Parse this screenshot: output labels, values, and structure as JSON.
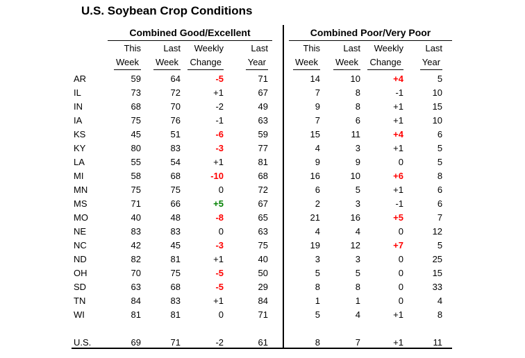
{
  "title": "U.S. Soybean Crop Conditions",
  "sections": [
    {
      "label": "Combined Good/Excellent"
    },
    {
      "label": "Combined Poor/Very Poor"
    }
  ],
  "column_headers": {
    "line1": [
      "This",
      "Last",
      "Weekly",
      "Last"
    ],
    "line2": [
      "Week",
      "Week",
      "Change",
      "Year"
    ]
  },
  "colors": {
    "red_highlight": "#ff0000",
    "green_highlight": "#008000",
    "text": "#000000",
    "background": "#ffffff"
  },
  "rows": [
    {
      "state": "AR",
      "good_excellent": {
        "this_week": "59",
        "last_week": "64",
        "weekly_change": "-5",
        "change_highlight": "red",
        "last_year": "71"
      },
      "poor_very_poor": {
        "this_week": "14",
        "last_week": "10",
        "weekly_change": "+4",
        "change_highlight": "red",
        "last_year": "5"
      }
    },
    {
      "state": "IL",
      "good_excellent": {
        "this_week": "73",
        "last_week": "72",
        "weekly_change": "+1",
        "change_highlight": null,
        "last_year": "67"
      },
      "poor_very_poor": {
        "this_week": "7",
        "last_week": "8",
        "weekly_change": "-1",
        "change_highlight": null,
        "last_year": "10"
      }
    },
    {
      "state": "IN",
      "good_excellent": {
        "this_week": "68",
        "last_week": "70",
        "weekly_change": "-2",
        "change_highlight": null,
        "last_year": "49"
      },
      "poor_very_poor": {
        "this_week": "9",
        "last_week": "8",
        "weekly_change": "+1",
        "change_highlight": null,
        "last_year": "15"
      }
    },
    {
      "state": "IA",
      "good_excellent": {
        "this_week": "75",
        "last_week": "76",
        "weekly_change": "-1",
        "change_highlight": null,
        "last_year": "63"
      },
      "poor_very_poor": {
        "this_week": "7",
        "last_week": "6",
        "weekly_change": "+1",
        "change_highlight": null,
        "last_year": "10"
      }
    },
    {
      "state": "KS",
      "good_excellent": {
        "this_week": "45",
        "last_week": "51",
        "weekly_change": "-6",
        "change_highlight": "red",
        "last_year": "59"
      },
      "poor_very_poor": {
        "this_week": "15",
        "last_week": "11",
        "weekly_change": "+4",
        "change_highlight": "red",
        "last_year": "6"
      }
    },
    {
      "state": "KY",
      "good_excellent": {
        "this_week": "80",
        "last_week": "83",
        "weekly_change": "-3",
        "change_highlight": "red",
        "last_year": "77"
      },
      "poor_very_poor": {
        "this_week": "4",
        "last_week": "3",
        "weekly_change": "+1",
        "change_highlight": null,
        "last_year": "5"
      }
    },
    {
      "state": "LA",
      "good_excellent": {
        "this_week": "55",
        "last_week": "54",
        "weekly_change": "+1",
        "change_highlight": null,
        "last_year": "81"
      },
      "poor_very_poor": {
        "this_week": "9",
        "last_week": "9",
        "weekly_change": "0",
        "change_highlight": null,
        "last_year": "5"
      }
    },
    {
      "state": "MI",
      "good_excellent": {
        "this_week": "58",
        "last_week": "68",
        "weekly_change": "-10",
        "change_highlight": "red",
        "last_year": "68"
      },
      "poor_very_poor": {
        "this_week": "16",
        "last_week": "10",
        "weekly_change": "+6",
        "change_highlight": "red",
        "last_year": "8"
      }
    },
    {
      "state": "MN",
      "good_excellent": {
        "this_week": "75",
        "last_week": "75",
        "weekly_change": "0",
        "change_highlight": null,
        "last_year": "72"
      },
      "poor_very_poor": {
        "this_week": "6",
        "last_week": "5",
        "weekly_change": "+1",
        "change_highlight": null,
        "last_year": "6"
      }
    },
    {
      "state": "MS",
      "good_excellent": {
        "this_week": "71",
        "last_week": "66",
        "weekly_change": "+5",
        "change_highlight": "green",
        "last_year": "67"
      },
      "poor_very_poor": {
        "this_week": "2",
        "last_week": "3",
        "weekly_change": "-1",
        "change_highlight": null,
        "last_year": "6"
      }
    },
    {
      "state": "MO",
      "good_excellent": {
        "this_week": "40",
        "last_week": "48",
        "weekly_change": "-8",
        "change_highlight": "red",
        "last_year": "65"
      },
      "poor_very_poor": {
        "this_week": "21",
        "last_week": "16",
        "weekly_change": "+5",
        "change_highlight": "red",
        "last_year": "7"
      }
    },
    {
      "state": "NE",
      "good_excellent": {
        "this_week": "83",
        "last_week": "83",
        "weekly_change": "0",
        "change_highlight": null,
        "last_year": "63"
      },
      "poor_very_poor": {
        "this_week": "4",
        "last_week": "4",
        "weekly_change": "0",
        "change_highlight": null,
        "last_year": "12"
      }
    },
    {
      "state": "NC",
      "good_excellent": {
        "this_week": "42",
        "last_week": "45",
        "weekly_change": "-3",
        "change_highlight": "red",
        "last_year": "75"
      },
      "poor_very_poor": {
        "this_week": "19",
        "last_week": "12",
        "weekly_change": "+7",
        "change_highlight": "red",
        "last_year": "5"
      }
    },
    {
      "state": "ND",
      "good_excellent": {
        "this_week": "82",
        "last_week": "81",
        "weekly_change": "+1",
        "change_highlight": null,
        "last_year": "40"
      },
      "poor_very_poor": {
        "this_week": "3",
        "last_week": "3",
        "weekly_change": "0",
        "change_highlight": null,
        "last_year": "25"
      }
    },
    {
      "state": "OH",
      "good_excellent": {
        "this_week": "70",
        "last_week": "75",
        "weekly_change": "-5",
        "change_highlight": "red",
        "last_year": "50"
      },
      "poor_very_poor": {
        "this_week": "5",
        "last_week": "5",
        "weekly_change": "0",
        "change_highlight": null,
        "last_year": "15"
      }
    },
    {
      "state": "SD",
      "good_excellent": {
        "this_week": "63",
        "last_week": "68",
        "weekly_change": "-5",
        "change_highlight": "red",
        "last_year": "29"
      },
      "poor_very_poor": {
        "this_week": "8",
        "last_week": "8",
        "weekly_change": "0",
        "change_highlight": null,
        "last_year": "33"
      }
    },
    {
      "state": "TN",
      "good_excellent": {
        "this_week": "84",
        "last_week": "83",
        "weekly_change": "+1",
        "change_highlight": null,
        "last_year": "84"
      },
      "poor_very_poor": {
        "this_week": "1",
        "last_week": "1",
        "weekly_change": "0",
        "change_highlight": null,
        "last_year": "4"
      }
    },
    {
      "state": "WI",
      "good_excellent": {
        "this_week": "81",
        "last_week": "81",
        "weekly_change": "0",
        "change_highlight": null,
        "last_year": "71"
      },
      "poor_very_poor": {
        "this_week": "5",
        "last_week": "4",
        "weekly_change": "+1",
        "change_highlight": null,
        "last_year": "8"
      }
    }
  ],
  "total": {
    "state": "U.S.",
    "good_excellent": {
      "this_week": "69",
      "last_week": "71",
      "weekly_change": "-2",
      "change_highlight": null,
      "last_year": "61"
    },
    "poor_very_poor": {
      "this_week": "8",
      "last_week": "7",
      "weekly_change": "+1",
      "change_highlight": null,
      "last_year": "11"
    }
  }
}
